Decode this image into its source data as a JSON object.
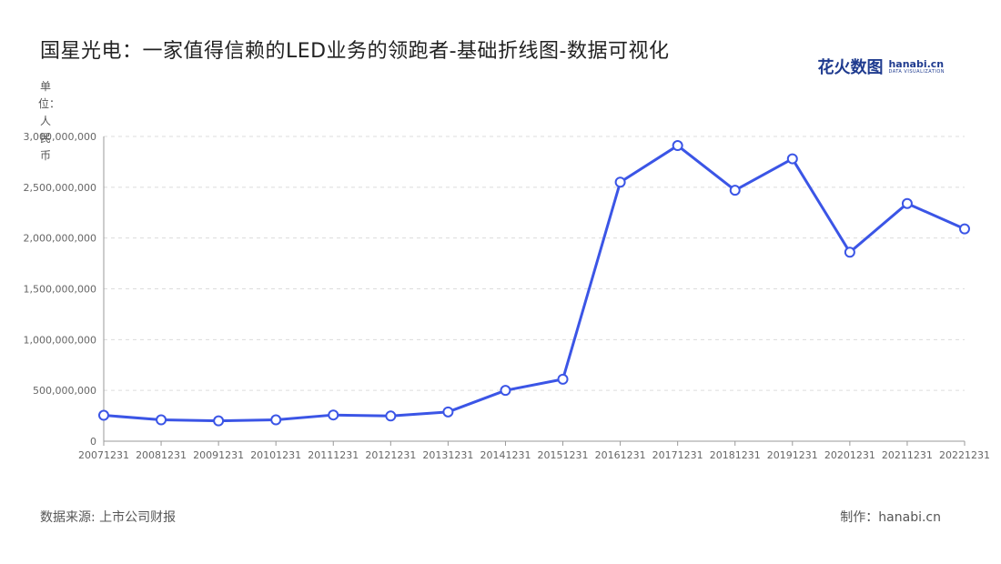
{
  "header": {
    "title": "国星光电：一家值得信赖的LED业务的领跑者-基础折线图-数据可视化",
    "brand_cn": "花火数图",
    "brand_en": "hanabi.cn",
    "brand_sub": "DATA VISUALIZATION"
  },
  "footer": {
    "source": "数据来源: 上市公司财报",
    "maker": "制作：hanabi.cn"
  },
  "colors": {
    "line": "#3b55e6",
    "marker_fill": "#ffffff"
  },
  "chart_data": {
    "type": "line",
    "title": "国星光电：一家值得信赖的LED业务的领跑者-基础折线图-数据可视化",
    "ylabel": "单位：人民币",
    "xlabel": "",
    "categories": [
      "20071231",
      "20081231",
      "20091231",
      "20101231",
      "20111231",
      "20121231",
      "20131231",
      "20141231",
      "20151231",
      "20161231",
      "20171231",
      "20181231",
      "20191231",
      "20201231",
      "20211231",
      "20221231"
    ],
    "series": [
      {
        "values": [
          255000000,
          210000000,
          200000000,
          210000000,
          258000000,
          248000000,
          288000000,
          500000000,
          610000000,
          2550000000,
          2910000000,
          2470000000,
          2780000000,
          1860000000,
          2340000000,
          2090000000
        ]
      }
    ],
    "ylim": [
      0,
      3000000000
    ],
    "yticks": [
      0,
      500000000,
      1000000000,
      1500000000,
      2000000000,
      2500000000,
      3000000000
    ],
    "ytick_labels": [
      "0",
      "500,000,000",
      "1,000,000,000",
      "1,500,000,000",
      "2,000,000,000",
      "2,500,000,000",
      "3,000,000,000"
    ],
    "grid": true,
    "legend": "none"
  }
}
